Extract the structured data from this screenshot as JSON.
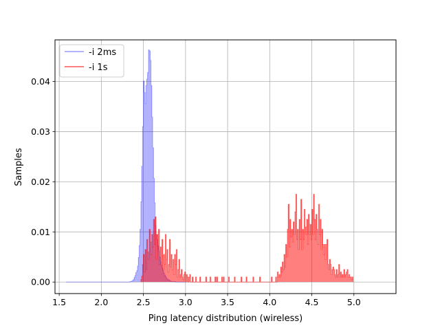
{
  "chart_data": {
    "type": "bar",
    "xlabel": "Ping latency distribution (wireless)",
    "ylabel": "Samples",
    "xlim": [
      1.45,
      5.5
    ],
    "ylim": [
      -0.0023,
      0.0483
    ],
    "xticks": [
      1.5,
      2.0,
      2.5,
      3.0,
      3.5,
      4.0,
      4.5,
      5.0
    ],
    "xtick_labels": [
      "1.5",
      "2.0",
      "2.5",
      "3.0",
      "3.5",
      "4.0",
      "4.5",
      "5.0"
    ],
    "yticks": [
      0.0,
      0.01,
      0.02,
      0.03,
      0.04
    ],
    "ytick_labels": [
      "0.00",
      "0.01",
      "0.02",
      "0.03",
      "0.04"
    ],
    "grid": true,
    "legend": "upper-left",
    "bin_width": 0.01,
    "series": [
      {
        "name": "-i 2ms",
        "color": "#0000ff",
        "alpha": 0.3,
        "x_start": 1.58,
        "values": [
          0,
          0,
          0,
          0,
          0,
          0,
          0,
          0,
          0,
          0,
          0,
          0,
          0,
          0,
          0,
          0,
          0,
          0,
          0,
          0,
          0,
          0,
          0,
          0,
          0,
          0,
          0,
          0,
          0,
          0,
          0,
          0,
          0,
          0,
          0,
          0,
          0,
          0,
          0,
          0,
          0,
          0,
          0,
          0,
          0,
          0,
          0,
          0,
          0,
          0,
          0,
          0,
          0,
          0,
          0,
          0,
          0,
          0,
          0,
          0,
          0,
          0,
          0,
          0,
          0,
          0,
          0,
          0,
          0,
          0,
          0,
          0,
          0,
          0,
          0,
          0,
          0.0001,
          0.0001,
          0.0002,
          0.0003,
          0.0005,
          0.0009,
          0.0013,
          0.0019,
          0.0023,
          0.0032,
          0.0049,
          0.0073,
          0.0105,
          0.016,
          0.0231,
          0.031,
          0.0401,
          0.0378,
          0.0356,
          0.0392,
          0.0405,
          0.0418,
          0.0463,
          0.0461,
          0.0442,
          0.0392,
          0.0329,
          0.0268,
          0.0207,
          0.0158,
          0.0113,
          0.0095,
          0.0085,
          0.0072,
          0.0062,
          0.005,
          0.0042,
          0.0034,
          0.0028,
          0.0023,
          0.0018,
          0.0014,
          0.0011,
          0.0008,
          0.0006,
          0.0005,
          0.0004,
          0.0003,
          0.0002,
          0.0001,
          0.0001,
          0.0001,
          0.0001,
          0.0001,
          0,
          0,
          0,
          0,
          0,
          0,
          0,
          0,
          0,
          0,
          0
        ]
      },
      {
        "name": "-i 1s",
        "color": "#ff0000",
        "alpha": 0.5,
        "x_start": 2.47,
        "values": [
          0.0005,
          0.0012,
          0.0035,
          0.0055,
          0.002,
          0.0065,
          0.0025,
          0.0085,
          0.006,
          0.0045,
          0.0105,
          0.008,
          0.0055,
          0.0095,
          0.007,
          0.0125,
          0.0075,
          0.013,
          0.0045,
          0.0095,
          0.0065,
          0.0105,
          0.0035,
          0.007,
          0.0045,
          0.0085,
          0.0025,
          0.0055,
          0.0035,
          0.0095,
          0.0045,
          0.0065,
          0.002,
          0.0035,
          0.0085,
          0.003,
          0.0055,
          0.0025,
          0.0045,
          0.0015,
          0.0055,
          0.0035,
          0.0065,
          0.001,
          0.0025,
          0.0045,
          0.001,
          0.0015,
          0.0025,
          0.001,
          0.0005,
          0.0015,
          0.002,
          0,
          0.0015,
          0.001,
          0,
          0.001,
          0.0015,
          0,
          0,
          0.001,
          0,
          0,
          0,
          0.001,
          0,
          0,
          0,
          0,
          0.001,
          0,
          0,
          0,
          0,
          0,
          0,
          0.001,
          0,
          0,
          0,
          0,
          0.001,
          0,
          0,
          0,
          0,
          0,
          0.001,
          0,
          0.001,
          0,
          0,
          0,
          0,
          0,
          0.001,
          0,
          0.001,
          0,
          0,
          0,
          0,
          0,
          0.001,
          0,
          0,
          0,
          0,
          0,
          0,
          0.001,
          0,
          0,
          0,
          0,
          0,
          0,
          0,
          0.001,
          0,
          0,
          0,
          0,
          0,
          0.001,
          0,
          0,
          0,
          0,
          0,
          0,
          0,
          0.001,
          0,
          0,
          0,
          0,
          0,
          0,
          0,
          0.001,
          0,
          0,
          0,
          0,
          0,
          0,
          0,
          0,
          0,
          0,
          0,
          0,
          0,
          0.001,
          0,
          0,
          0,
          0,
          0.001,
          0,
          0.002,
          0.001,
          0.0015,
          0.001,
          0.003,
          0.002,
          0.004,
          0.0025,
          0.0055,
          0.003,
          0.0075,
          0.005,
          0.0105,
          0.0155,
          0.007,
          0.0125,
          0.009,
          0.0105,
          0.008,
          0.012,
          0.0095,
          0.014,
          0.0175,
          0.0085,
          0.0105,
          0.0065,
          0.0125,
          0.0085,
          0.0165,
          0.0065,
          0.0105,
          0.0085,
          0.0145,
          0.011,
          0.0095,
          0.0125,
          0.0075,
          0.0135,
          0.0095,
          0.0115,
          0.0085,
          0.0145,
          0.0095,
          0.0175,
          0.0125,
          0.0085,
          0.0135,
          0.0105,
          0.0075,
          0.0155,
          0.0095,
          0.0125,
          0.0065,
          0.0105,
          0.0075,
          0.0055,
          0.0075,
          0.0045,
          0.0075,
          0.0085,
          0.0035,
          0.0025,
          0.0045,
          0.0035,
          0.0015,
          0.0025,
          0.003,
          0.0025,
          0.0015,
          0.001,
          0.0025,
          0.001,
          0.0015,
          0.0035,
          0.001,
          0.002,
          0.001,
          0.0015,
          0.001,
          0.0025,
          0.001,
          0.0015,
          0.002,
          0.0025,
          0.001,
          0.0015,
          0.001,
          0.001,
          0.0005,
          0.001
        ]
      }
    ]
  }
}
